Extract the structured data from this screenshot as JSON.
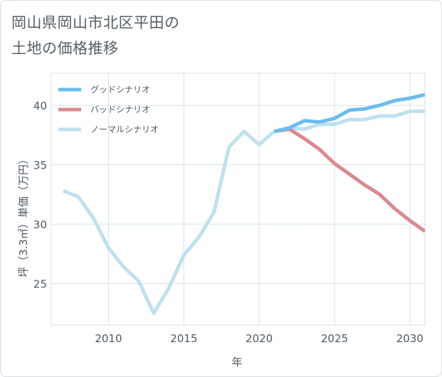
{
  "title": {
    "line1": "岡山県岡山市北区平田の",
    "line2": "土地の価格推移"
  },
  "colors": {
    "good": "#6bbcee",
    "bad": "#dc8890",
    "normal": "#bfe0ef",
    "grid": "#d4e2ec"
  },
  "chart_data": {
    "type": "line",
    "xlabel": "年",
    "ylabel": "坪（3.3㎡）単価（万円）",
    "xlim": [
      2006.2,
      2031
    ],
    "ylim": [
      21.5,
      42.7
    ],
    "xticks": [
      2010,
      2015,
      2020,
      2025,
      2030
    ],
    "yticks": [
      25,
      30,
      35,
      40
    ],
    "grid": true,
    "legend_position": "top-left",
    "series": [
      {
        "name": "グッドシナリオ",
        "key": "good",
        "x": [
          2021,
          2022,
          2023,
          2024,
          2025,
          2026,
          2027,
          2028,
          2029,
          2030,
          2031
        ],
        "values": [
          37.8,
          38.1,
          38.7,
          38.6,
          38.9,
          39.6,
          39.7,
          40.0,
          40.4,
          40.6,
          40.9
        ]
      },
      {
        "name": "バッドシナリオ",
        "key": "bad",
        "x": [
          2021,
          2022,
          2023,
          2024,
          2025,
          2026,
          2027,
          2028,
          2029,
          2030,
          2031
        ],
        "values": [
          37.8,
          38.0,
          37.2,
          36.3,
          35.1,
          34.2,
          33.3,
          32.5,
          31.3,
          30.3,
          29.4
        ]
      },
      {
        "name": "ノーマルシナリオ",
        "key": "normal",
        "x": [
          2007,
          2008,
          2009,
          2010,
          2011,
          2012,
          2013,
          2014,
          2015,
          2016,
          2017,
          2018,
          2019,
          2020,
          2021,
          2022,
          2023,
          2024,
          2025,
          2026,
          2027,
          2028,
          2029,
          2030,
          2031
        ],
        "values": [
          32.8,
          32.3,
          30.5,
          28.0,
          26.4,
          25.2,
          22.5,
          24.6,
          27.4,
          28.9,
          31.0,
          36.5,
          37.8,
          36.7,
          37.8,
          38.1,
          38.0,
          38.4,
          38.4,
          38.8,
          38.8,
          39.1,
          39.1,
          39.5,
          39.5
        ]
      }
    ]
  }
}
